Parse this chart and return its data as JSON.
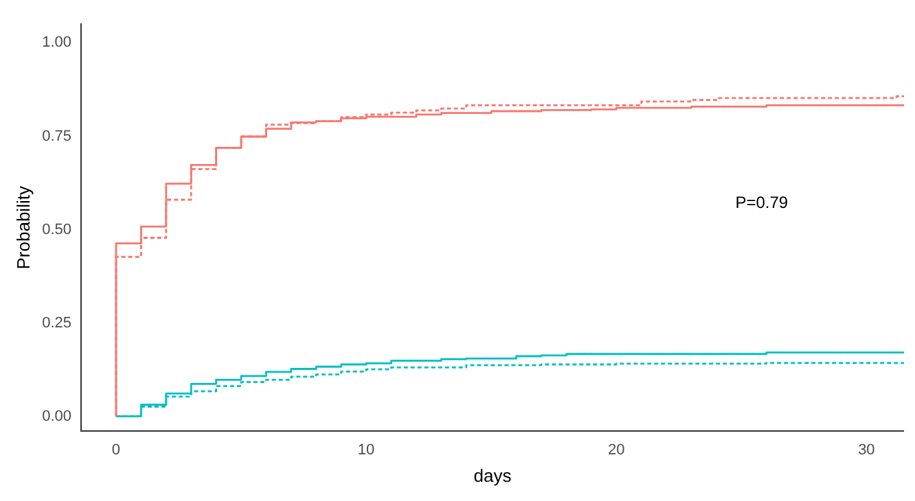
{
  "chart_data": {
    "type": "step",
    "xlabel": "days",
    "ylabel": "Probability",
    "xlim": [
      -1.4,
      31.5
    ],
    "xticks": [
      0,
      10,
      20,
      30
    ],
    "ylim": [
      -0.04,
      1.05
    ],
    "yticks": [
      {
        "value": 0,
        "label": "0.00"
      },
      {
        "value": 0.25,
        "label": "0.25"
      },
      {
        "value": 0.5,
        "label": "0.50"
      },
      {
        "value": 0.75,
        "label": "0.75"
      },
      {
        "value": 1,
        "label": "1.00"
      }
    ],
    "grid": false,
    "legend": false,
    "marker": "none",
    "annotations": [
      "P=0.79"
    ],
    "series": [
      {
        "color": "#f8766d",
        "line_style": "solid",
        "x": [
          0,
          0,
          1,
          2,
          3,
          4,
          5,
          6,
          7,
          8,
          9,
          10,
          12,
          13,
          15,
          17,
          19,
          20,
          23,
          26,
          31.5
        ],
        "values": [
          0,
          0.463,
          0.508,
          0.623,
          0.673,
          0.719,
          0.749,
          0.77,
          0.787,
          0.79,
          0.798,
          0.802,
          0.808,
          0.812,
          0.817,
          0.82,
          0.822,
          0.826,
          0.829,
          0.833,
          0.833
        ]
      },
      {
        "color": "#f8766d",
        "line_style": "dashed",
        "x": [
          0,
          0,
          1,
          2,
          3,
          4,
          5,
          6,
          7,
          8,
          9,
          10,
          11,
          12,
          13,
          14,
          21,
          23,
          24,
          31.2,
          31.5
        ],
        "values": [
          0,
          0.427,
          0.478,
          0.58,
          0.662,
          0.719,
          0.749,
          0.781,
          0.785,
          0.79,
          0.801,
          0.808,
          0.813,
          0.819,
          0.824,
          0.833,
          0.843,
          0.847,
          0.852,
          0.857,
          0.857
        ]
      },
      {
        "color": "#00bfc4",
        "line_style": "solid",
        "x": [
          0,
          1,
          2,
          3,
          4,
          5,
          6,
          7,
          8,
          9,
          10,
          11,
          13,
          14,
          16,
          17,
          18,
          26,
          31.5
        ],
        "values": [
          0,
          0.031,
          0.061,
          0.087,
          0.098,
          0.108,
          0.119,
          0.127,
          0.133,
          0.139,
          0.142,
          0.149,
          0.153,
          0.155,
          0.161,
          0.163,
          0.167,
          0.171,
          0.171
        ]
      },
      {
        "color": "#00bfc4",
        "line_style": "dashed",
        "x": [
          0,
          1,
          2,
          3,
          4,
          5,
          6,
          7,
          8,
          9,
          10,
          11,
          14,
          17,
          20,
          26,
          31.5
        ],
        "values": [
          0,
          0.026,
          0.053,
          0.067,
          0.081,
          0.092,
          0.098,
          0.106,
          0.112,
          0.12,
          0.126,
          0.131,
          0.137,
          0.139,
          0.141,
          0.143,
          0.143
        ]
      }
    ]
  }
}
